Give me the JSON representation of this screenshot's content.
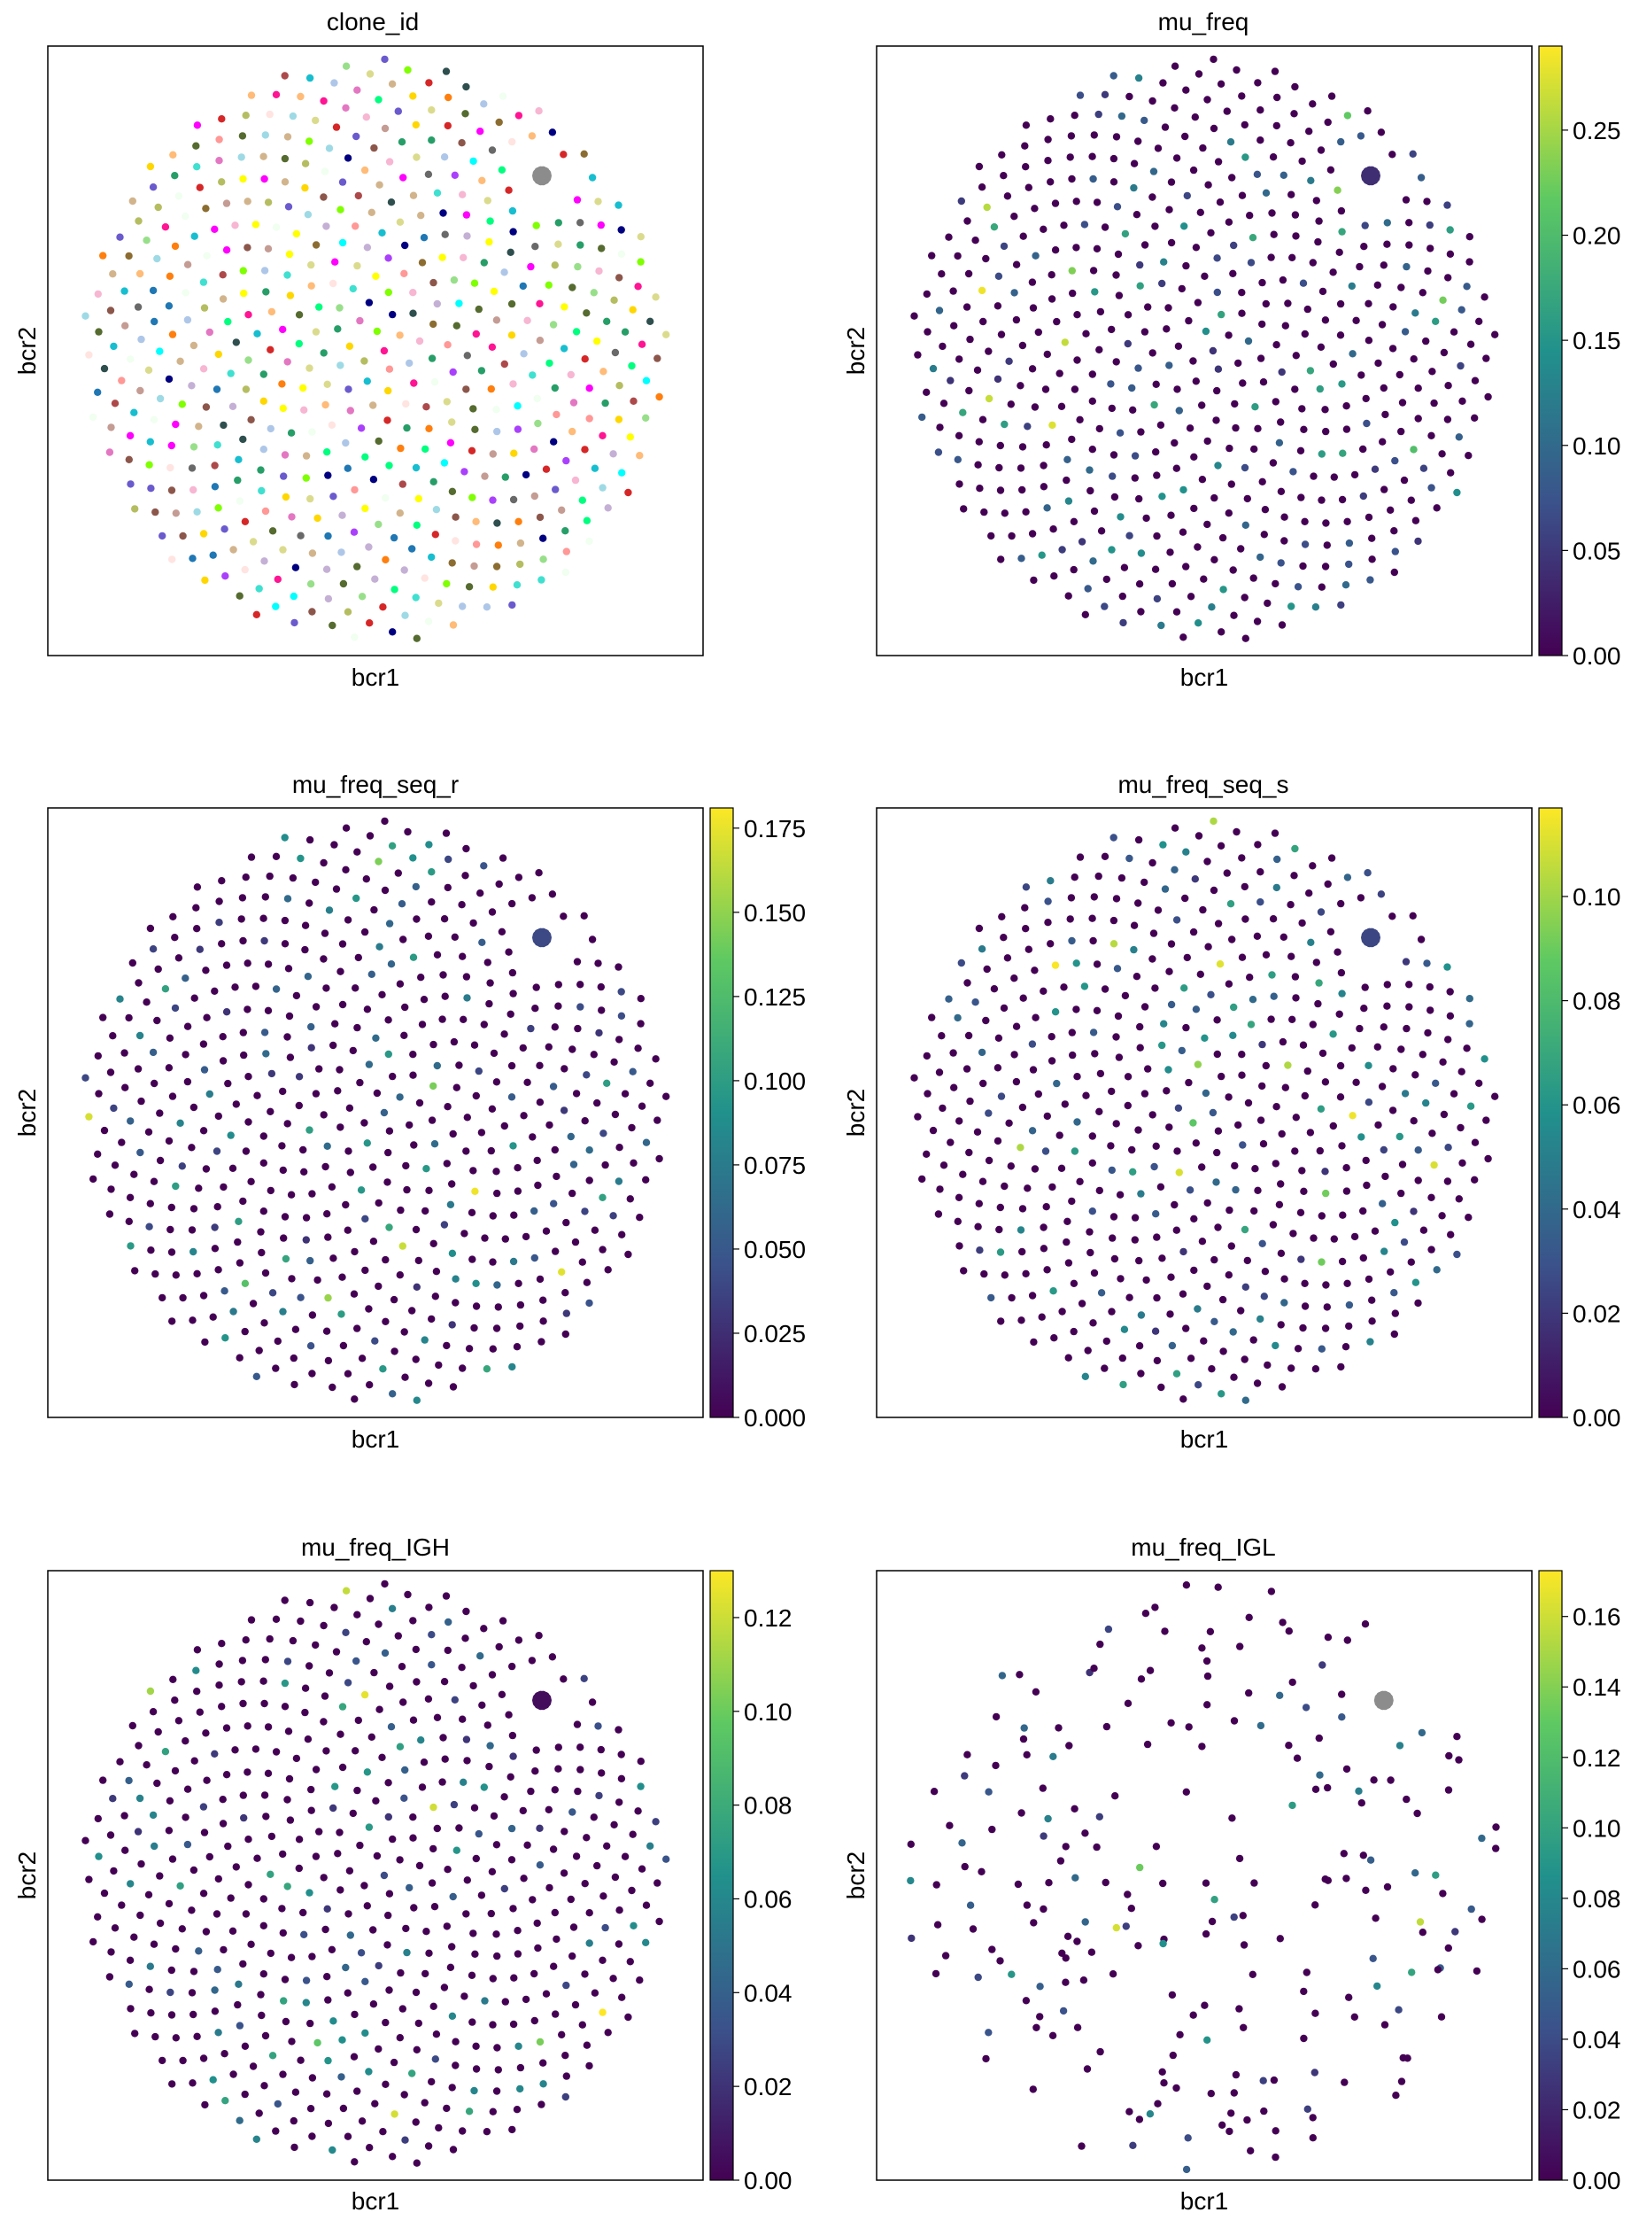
{
  "figure": {
    "colormap": "viridis",
    "colormap_stops": [
      "#440154",
      "#3b528b",
      "#21918c",
      "#5ec962",
      "#fde725"
    ],
    "clone_palette": [
      "#1f77b4",
      "#ff7f0e",
      "#279e68",
      "#d62728",
      "#aa40fc",
      "#8c564b",
      "#e377c2",
      "#b5bd61",
      "#17becf",
      "#aec7e8",
      "#ffbb78",
      "#98df8a",
      "#ff9896",
      "#c5b0d5",
      "#c49c94",
      "#f7b6d2",
      "#dbdb8d",
      "#9edae5",
      "#ad494a",
      "#8c6d31",
      "#00ffff",
      "#ff00ff",
      "#ffff00",
      "#00ff7f",
      "#000080",
      "#ff1493",
      "#7fff00",
      "#6a5acd",
      "#ffd700",
      "#40e0d0",
      "#2f4f4f",
      "#ffe4e1",
      "#f0fff0",
      "#d2b48c",
      "#696969",
      "#556b2f"
    ],
    "cluster_color_grey": "#8c8c8c",
    "background_dot_color": "#440154"
  },
  "chart_data": [
    {
      "type": "scatter",
      "title": "clone_id",
      "xlabel": "bcr1",
      "ylabel": "bcr2",
      "color_mode": "categorical",
      "colorbar": null,
      "dense_cluster": {
        "x": 0.7,
        "y": 0.7,
        "color_value": "grey"
      }
    },
    {
      "type": "scatter",
      "title": "mu_freq",
      "xlabel": "bcr1",
      "ylabel": "bcr2",
      "color_mode": "continuous",
      "colorbar": {
        "min": 0.0,
        "max": 0.29,
        "ticks": [
          "0.00",
          "0.05",
          "0.10",
          "0.15",
          "0.20",
          "0.25"
        ],
        "tick_values": [
          0.0,
          0.05,
          0.1,
          0.15,
          0.2,
          0.25
        ]
      },
      "dense_cluster": {
        "x": 0.7,
        "y": 0.7,
        "color_value": 0.04
      }
    },
    {
      "type": "scatter",
      "title": "mu_freq_seq_r",
      "xlabel": "bcr1",
      "ylabel": "bcr2",
      "color_mode": "continuous",
      "colorbar": {
        "min": 0.0,
        "max": 0.181,
        "ticks": [
          "0.000",
          "0.025",
          "0.050",
          "0.075",
          "0.100",
          "0.125",
          "0.150",
          "0.175"
        ],
        "tick_values": [
          0.0,
          0.025,
          0.05,
          0.075,
          0.1,
          0.125,
          0.15,
          0.175
        ]
      },
      "dense_cluster": {
        "x": 0.7,
        "y": 0.7,
        "color_value": 0.04
      }
    },
    {
      "type": "scatter",
      "title": "mu_freq_seq_s",
      "xlabel": "bcr1",
      "ylabel": "bcr2",
      "color_mode": "continuous",
      "colorbar": {
        "min": 0.0,
        "max": 0.117,
        "ticks": [
          "0.00",
          "0.02",
          "0.04",
          "0.06",
          "0.08",
          "0.10"
        ],
        "tick_values": [
          0.0,
          0.02,
          0.04,
          0.06,
          0.08,
          0.1
        ]
      },
      "dense_cluster": {
        "x": 0.7,
        "y": 0.7,
        "color_value": 0.025
      }
    },
    {
      "type": "scatter",
      "title": "mu_freq_IGH",
      "xlabel": "bcr1",
      "ylabel": "bcr2",
      "color_mode": "continuous",
      "colorbar": {
        "min": 0.0,
        "max": 0.13,
        "ticks": [
          "0.00",
          "0.02",
          "0.04",
          "0.06",
          "0.08",
          "0.10",
          "0.12"
        ],
        "tick_values": [
          0.0,
          0.02,
          0.04,
          0.06,
          0.08,
          0.1,
          0.12
        ]
      },
      "dense_cluster": {
        "x": 0.7,
        "y": 0.7,
        "color_value": 0.005
      }
    },
    {
      "type": "scatter",
      "title": "mu_freq_IGL",
      "xlabel": "bcr1",
      "ylabel": "bcr2",
      "color_mode": "continuous",
      "sparse": true,
      "colorbar": {
        "min": 0.0,
        "max": 0.173,
        "ticks": [
          "0.00",
          "0.02",
          "0.04",
          "0.06",
          "0.08",
          "0.10",
          "0.12",
          "0.14",
          "0.16"
        ],
        "tick_values": [
          0.0,
          0.02,
          0.04,
          0.06,
          0.08,
          0.1,
          0.12,
          0.14,
          0.16
        ]
      },
      "dense_cluster": {
        "x": 0.72,
        "y": 0.7,
        "color_value": "grey"
      }
    }
  ]
}
